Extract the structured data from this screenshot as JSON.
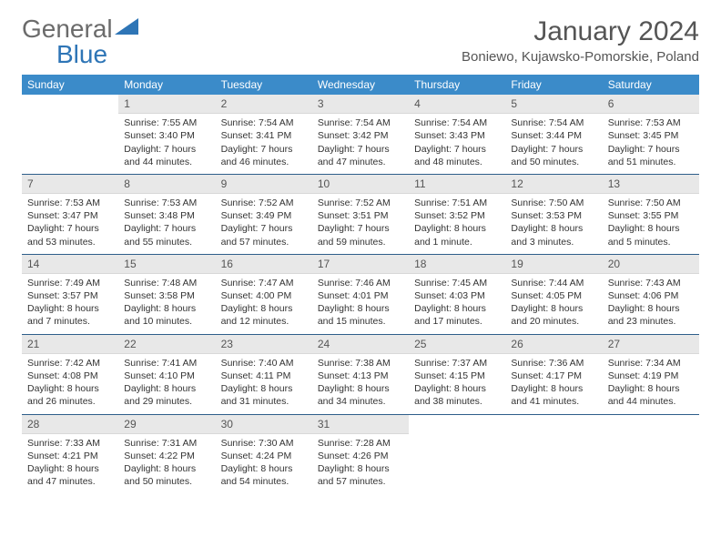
{
  "logo": {
    "word1": "General",
    "word2": "Blue"
  },
  "title": "January 2024",
  "location": "Boniewo, Kujawsko-Pomorskie, Poland",
  "day_headers": [
    "Sunday",
    "Monday",
    "Tuesday",
    "Wednesday",
    "Thursday",
    "Friday",
    "Saturday"
  ],
  "header_bg": "#3b8bc9",
  "daynum_bg": "#e8e8e8",
  "sep_color": "#2e5e8a",
  "weeks": [
    [
      {
        "n": "",
        "sr": "",
        "ss": "",
        "dl": ""
      },
      {
        "n": "1",
        "sr": "Sunrise: 7:55 AM",
        "ss": "Sunset: 3:40 PM",
        "dl": "Daylight: 7 hours and 44 minutes."
      },
      {
        "n": "2",
        "sr": "Sunrise: 7:54 AM",
        "ss": "Sunset: 3:41 PM",
        "dl": "Daylight: 7 hours and 46 minutes."
      },
      {
        "n": "3",
        "sr": "Sunrise: 7:54 AM",
        "ss": "Sunset: 3:42 PM",
        "dl": "Daylight: 7 hours and 47 minutes."
      },
      {
        "n": "4",
        "sr": "Sunrise: 7:54 AM",
        "ss": "Sunset: 3:43 PM",
        "dl": "Daylight: 7 hours and 48 minutes."
      },
      {
        "n": "5",
        "sr": "Sunrise: 7:54 AM",
        "ss": "Sunset: 3:44 PM",
        "dl": "Daylight: 7 hours and 50 minutes."
      },
      {
        "n": "6",
        "sr": "Sunrise: 7:53 AM",
        "ss": "Sunset: 3:45 PM",
        "dl": "Daylight: 7 hours and 51 minutes."
      }
    ],
    [
      {
        "n": "7",
        "sr": "Sunrise: 7:53 AM",
        "ss": "Sunset: 3:47 PM",
        "dl": "Daylight: 7 hours and 53 minutes."
      },
      {
        "n": "8",
        "sr": "Sunrise: 7:53 AM",
        "ss": "Sunset: 3:48 PM",
        "dl": "Daylight: 7 hours and 55 minutes."
      },
      {
        "n": "9",
        "sr": "Sunrise: 7:52 AM",
        "ss": "Sunset: 3:49 PM",
        "dl": "Daylight: 7 hours and 57 minutes."
      },
      {
        "n": "10",
        "sr": "Sunrise: 7:52 AM",
        "ss": "Sunset: 3:51 PM",
        "dl": "Daylight: 7 hours and 59 minutes."
      },
      {
        "n": "11",
        "sr": "Sunrise: 7:51 AM",
        "ss": "Sunset: 3:52 PM",
        "dl": "Daylight: 8 hours and 1 minute."
      },
      {
        "n": "12",
        "sr": "Sunrise: 7:50 AM",
        "ss": "Sunset: 3:53 PM",
        "dl": "Daylight: 8 hours and 3 minutes."
      },
      {
        "n": "13",
        "sr": "Sunrise: 7:50 AM",
        "ss": "Sunset: 3:55 PM",
        "dl": "Daylight: 8 hours and 5 minutes."
      }
    ],
    [
      {
        "n": "14",
        "sr": "Sunrise: 7:49 AM",
        "ss": "Sunset: 3:57 PM",
        "dl": "Daylight: 8 hours and 7 minutes."
      },
      {
        "n": "15",
        "sr": "Sunrise: 7:48 AM",
        "ss": "Sunset: 3:58 PM",
        "dl": "Daylight: 8 hours and 10 minutes."
      },
      {
        "n": "16",
        "sr": "Sunrise: 7:47 AM",
        "ss": "Sunset: 4:00 PM",
        "dl": "Daylight: 8 hours and 12 minutes."
      },
      {
        "n": "17",
        "sr": "Sunrise: 7:46 AM",
        "ss": "Sunset: 4:01 PM",
        "dl": "Daylight: 8 hours and 15 minutes."
      },
      {
        "n": "18",
        "sr": "Sunrise: 7:45 AM",
        "ss": "Sunset: 4:03 PM",
        "dl": "Daylight: 8 hours and 17 minutes."
      },
      {
        "n": "19",
        "sr": "Sunrise: 7:44 AM",
        "ss": "Sunset: 4:05 PM",
        "dl": "Daylight: 8 hours and 20 minutes."
      },
      {
        "n": "20",
        "sr": "Sunrise: 7:43 AM",
        "ss": "Sunset: 4:06 PM",
        "dl": "Daylight: 8 hours and 23 minutes."
      }
    ],
    [
      {
        "n": "21",
        "sr": "Sunrise: 7:42 AM",
        "ss": "Sunset: 4:08 PM",
        "dl": "Daylight: 8 hours and 26 minutes."
      },
      {
        "n": "22",
        "sr": "Sunrise: 7:41 AM",
        "ss": "Sunset: 4:10 PM",
        "dl": "Daylight: 8 hours and 29 minutes."
      },
      {
        "n": "23",
        "sr": "Sunrise: 7:40 AM",
        "ss": "Sunset: 4:11 PM",
        "dl": "Daylight: 8 hours and 31 minutes."
      },
      {
        "n": "24",
        "sr": "Sunrise: 7:38 AM",
        "ss": "Sunset: 4:13 PM",
        "dl": "Daylight: 8 hours and 34 minutes."
      },
      {
        "n": "25",
        "sr": "Sunrise: 7:37 AM",
        "ss": "Sunset: 4:15 PM",
        "dl": "Daylight: 8 hours and 38 minutes."
      },
      {
        "n": "26",
        "sr": "Sunrise: 7:36 AM",
        "ss": "Sunset: 4:17 PM",
        "dl": "Daylight: 8 hours and 41 minutes."
      },
      {
        "n": "27",
        "sr": "Sunrise: 7:34 AM",
        "ss": "Sunset: 4:19 PM",
        "dl": "Daylight: 8 hours and 44 minutes."
      }
    ],
    [
      {
        "n": "28",
        "sr": "Sunrise: 7:33 AM",
        "ss": "Sunset: 4:21 PM",
        "dl": "Daylight: 8 hours and 47 minutes."
      },
      {
        "n": "29",
        "sr": "Sunrise: 7:31 AM",
        "ss": "Sunset: 4:22 PM",
        "dl": "Daylight: 8 hours and 50 minutes."
      },
      {
        "n": "30",
        "sr": "Sunrise: 7:30 AM",
        "ss": "Sunset: 4:24 PM",
        "dl": "Daylight: 8 hours and 54 minutes."
      },
      {
        "n": "31",
        "sr": "Sunrise: 7:28 AM",
        "ss": "Sunset: 4:26 PM",
        "dl": "Daylight: 8 hours and 57 minutes."
      },
      {
        "n": "",
        "sr": "",
        "ss": "",
        "dl": ""
      },
      {
        "n": "",
        "sr": "",
        "ss": "",
        "dl": ""
      },
      {
        "n": "",
        "sr": "",
        "ss": "",
        "dl": ""
      }
    ]
  ]
}
